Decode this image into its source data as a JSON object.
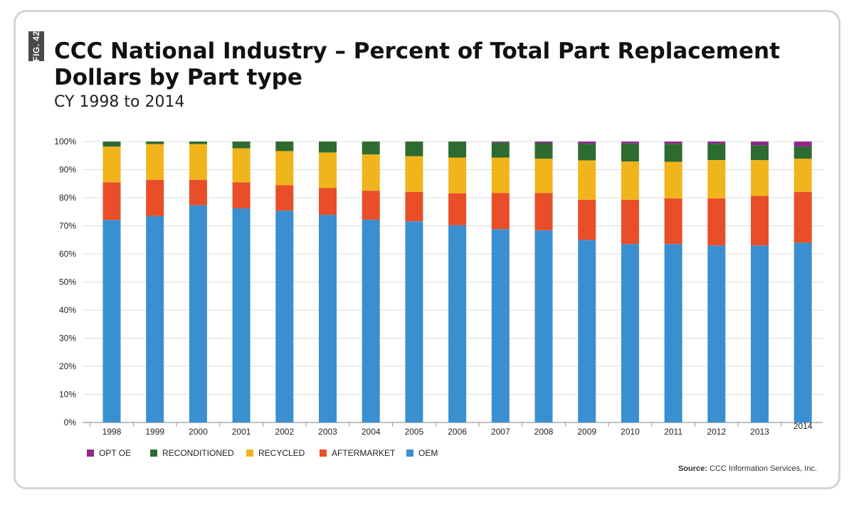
{
  "header": {
    "fig_tag": "FIG. 42",
    "title": "CCC National Industry – Percent of Total Part Replacement Dollars by Part type",
    "subtitle": "CY 1998 to 2014"
  },
  "footer": {
    "source_label": "Source:",
    "source_text": "CCC Information Services, Inc."
  },
  "chart_data": {
    "type": "bar",
    "stacked": true,
    "categories": [
      "1998",
      "1999",
      "2000",
      "2001",
      "2002",
      "2003",
      "2004",
      "2005",
      "2006",
      "2007",
      "2008",
      "2009",
      "2010",
      "2011",
      "2012",
      "2013",
      "2014"
    ],
    "ylim": [
      0,
      100
    ],
    "yticks": [
      0,
      10,
      20,
      30,
      40,
      50,
      60,
      70,
      80,
      90,
      100
    ],
    "ytick_labels": [
      "0%",
      "10%",
      "20%",
      "30%",
      "40%",
      "50%",
      "60%",
      "70%",
      "80%",
      "90%",
      "100%"
    ],
    "grid": true,
    "legend_position": "bottom-left",
    "series": [
      {
        "name": "OEM",
        "color": "#3a8fd1",
        "values": [
          72.1,
          73.5,
          77.3,
          76.2,
          75.4,
          73.9,
          72.2,
          71.6,
          70.2,
          68.8,
          68.4,
          65.0,
          63.5,
          63.5,
          63.0,
          63.0,
          64.0
        ]
      },
      {
        "name": "AFTERMARKET",
        "color": "#e84e27",
        "values": [
          13.4,
          12.9,
          9.1,
          9.3,
          9.1,
          9.6,
          10.3,
          10.5,
          11.4,
          12.9,
          13.3,
          14.3,
          15.8,
          16.3,
          16.8,
          17.7,
          18.1
        ]
      },
      {
        "name": "RECYCLED",
        "color": "#f1b51c",
        "values": [
          12.7,
          12.7,
          12.7,
          12.1,
          12.1,
          12.6,
          12.9,
          12.7,
          12.7,
          12.6,
          12.2,
          14.0,
          13.6,
          13.0,
          13.6,
          12.7,
          11.8
        ]
      },
      {
        "name": "RECONDITIONED",
        "color": "#2e6b30",
        "values": [
          1.8,
          0.9,
          0.9,
          2.4,
          3.4,
          3.9,
          4.6,
          5.2,
          5.7,
          5.4,
          5.6,
          5.9,
          6.4,
          6.4,
          5.8,
          5.3,
          4.3
        ]
      },
      {
        "name": "OPT OE",
        "color": "#8e2a8c",
        "values": [
          0,
          0,
          0,
          0,
          0,
          0,
          0,
          0,
          0,
          0.3,
          0.5,
          0.8,
          0.7,
          0.8,
          0.8,
          1.3,
          1.8
        ]
      }
    ],
    "legend_order": [
      "OPT OE",
      "RECONDITIONED",
      "RECYCLED",
      "AFTERMARKET",
      "OEM"
    ]
  }
}
